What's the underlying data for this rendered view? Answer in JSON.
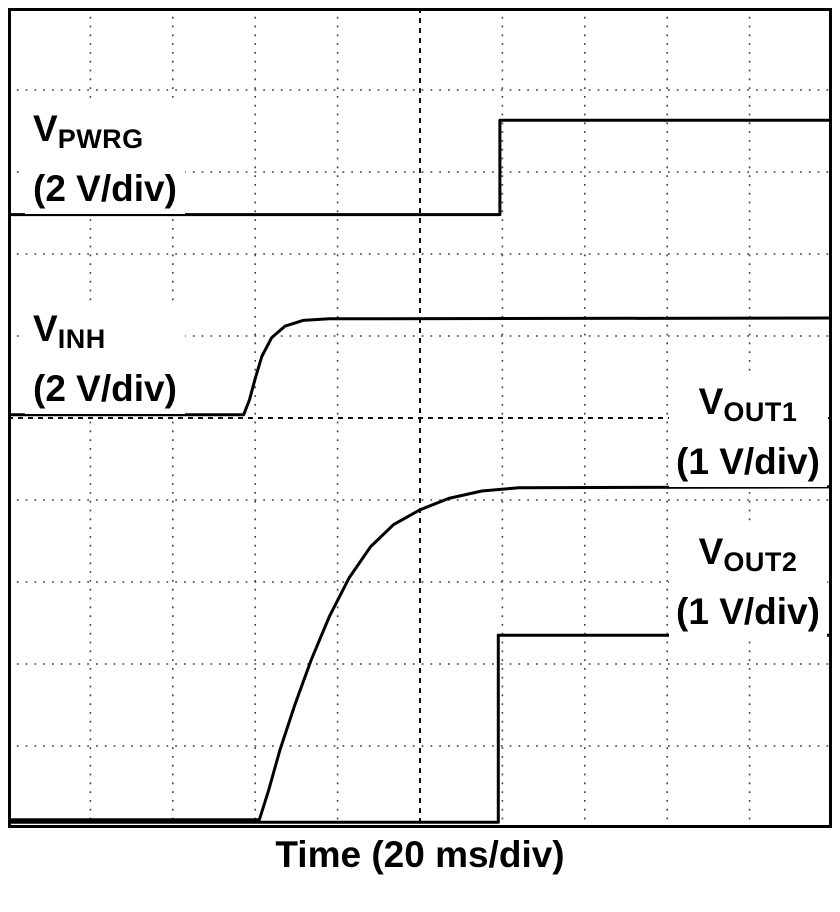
{
  "chart_data": {
    "type": "line",
    "title": "",
    "xlabel": "Time (20 ms/div)",
    "x_units": "grid divisions (20 ms per division)",
    "y_units": "grid divisions measured from top of graticule",
    "x_range_div": [
      0,
      10
    ],
    "y_range_div": [
      0,
      10
    ],
    "time_per_div": "20 ms",
    "grid": {
      "x_divisions": 10,
      "y_divisions": 10,
      "style": "dotted",
      "center_lines": "dashed"
    },
    "colors": {
      "trace": "#000000",
      "grid": "#444444",
      "center_line": "#111111",
      "border": "#000000",
      "background": "#ffffff"
    },
    "series": [
      {
        "name": "V_PWRG",
        "scale": "2 V/div",
        "points": [
          [
            0,
            2.52
          ],
          [
            5.97,
            2.52
          ],
          [
            5.97,
            1.37
          ],
          [
            10,
            1.37
          ]
        ]
      },
      {
        "name": "V_INH",
        "scale": "2 V/div",
        "points": [
          [
            0,
            4.96
          ],
          [
            2.86,
            4.96
          ],
          [
            2.93,
            4.78
          ],
          [
            3.0,
            4.52
          ],
          [
            3.08,
            4.25
          ],
          [
            3.2,
            4.02
          ],
          [
            3.36,
            3.88
          ],
          [
            3.58,
            3.81
          ],
          [
            3.9,
            3.79
          ],
          [
            10,
            3.78
          ]
        ]
      },
      {
        "name": "V_OUT1",
        "scale": "1 V/div",
        "points": [
          [
            0,
            9.9
          ],
          [
            3.05,
            9.9
          ],
          [
            3.16,
            9.55
          ],
          [
            3.3,
            9.05
          ],
          [
            3.48,
            8.5
          ],
          [
            3.68,
            7.95
          ],
          [
            3.9,
            7.42
          ],
          [
            4.14,
            6.95
          ],
          [
            4.4,
            6.57
          ],
          [
            4.68,
            6.3
          ],
          [
            5.0,
            6.12
          ],
          [
            5.35,
            5.98
          ],
          [
            5.75,
            5.89
          ],
          [
            6.2,
            5.85
          ],
          [
            10,
            5.84
          ]
        ]
      },
      {
        "name": "V_OUT2",
        "scale": "1 V/div",
        "points": [
          [
            0,
            9.93
          ],
          [
            5.95,
            9.93
          ],
          [
            5.95,
            7.65
          ],
          [
            10,
            7.65
          ]
        ]
      }
    ],
    "labels": [
      {
        "id": "pwrg",
        "main": "V",
        "sub": "PWRG",
        "scale": "(2 V/div)"
      },
      {
        "id": "inh",
        "main": "V",
        "sub": "INH",
        "scale": "(2 V/div)"
      },
      {
        "id": "out1",
        "main": "V",
        "sub": "OUT1",
        "scale": "(1 V/div)"
      },
      {
        "id": "out2",
        "main": "V",
        "sub": "OUT2",
        "scale": "(1 V/div)"
      }
    ]
  }
}
